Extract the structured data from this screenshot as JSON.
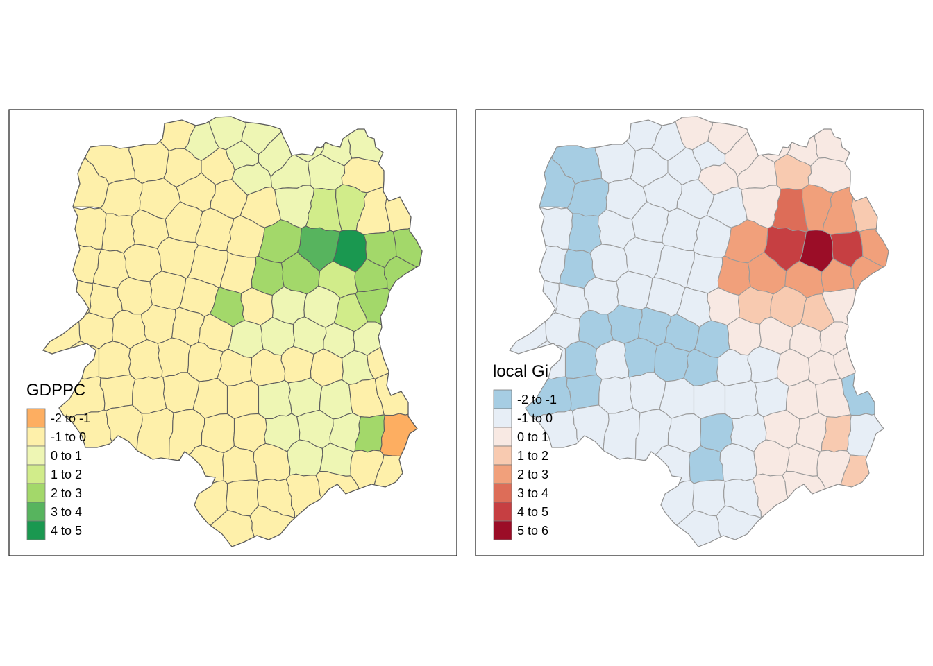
{
  "panels": [
    {
      "legend_title": "GDPPC",
      "legend": [
        {
          "label": "-2 to -1",
          "color": "#fdae61"
        },
        {
          "label": "-1 to 0",
          "color": "#fef0aa"
        },
        {
          "label": "0 to 1",
          "color": "#eef6b4"
        },
        {
          "label": "1 to 2",
          "color": "#d1ec8a"
        },
        {
          "label": "2 to 3",
          "color": "#a3d86a"
        },
        {
          "label": "3 to 4",
          "color": "#57b45e"
        },
        {
          "label": "4 to 5",
          "color": "#1a9850"
        }
      ]
    },
    {
      "legend_title": "local Gi",
      "legend": [
        {
          "label": "-2 to -1",
          "color": "#a6cde3"
        },
        {
          "label": "-1 to 0",
          "color": "#e7eef6"
        },
        {
          "label": "0 to 1",
          "color": "#f8e9e3"
        },
        {
          "label": "1 to 2",
          "color": "#f8cab0"
        },
        {
          "label": "2 to 3",
          "color": "#f1a07b"
        },
        {
          "label": "3 to 4",
          "color": "#dd6d58"
        },
        {
          "label": "4 to 5",
          "color": "#c63f42"
        },
        {
          "label": "5 to 6",
          "color": "#9b0d27"
        }
      ]
    }
  ]
}
